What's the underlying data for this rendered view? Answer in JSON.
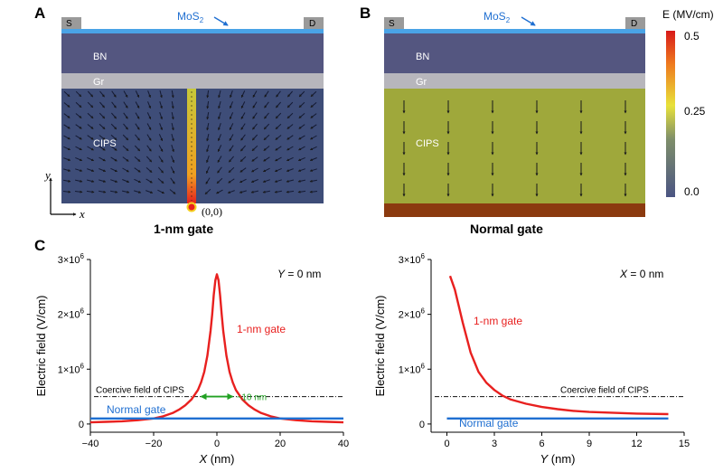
{
  "panel_a": {
    "letter": "A",
    "mos2_label": "MoS",
    "mos2_sub": "2",
    "source_label": "S",
    "drain_label": "D",
    "bn_label": "BN",
    "gr_label": "Gr",
    "cips_label": "CIPS",
    "origin_label": "(0,0)",
    "axis_y": "y",
    "axis_x": "x",
    "caption": "1-nm gate"
  },
  "panel_b": {
    "letter": "B",
    "mos2_label": "MoS",
    "mos2_sub": "2",
    "source_label": "S",
    "drain_label": "D",
    "bn_label": "BN",
    "gr_label": "Gr",
    "cips_label": "CIPS",
    "caption": "Normal gate"
  },
  "colorbar": {
    "title": "E (MV/cm)",
    "ticks": [
      "0.5",
      "0.25",
      "0.0"
    ]
  },
  "panel_c_letter": "C",
  "colors": {
    "mos2": "#4aa3e6",
    "contact": "#9a9a9a",
    "bn": "#545680",
    "gr": "#b7b6bc",
    "cips_field": "#3e4d78",
    "cips_normal": "#9fa83b",
    "gate_normal": "#8b3a0f",
    "curve_1nm": "#e8201f",
    "curve_normal": "#1f6fd1",
    "arrow_green": "#22a123"
  },
  "chart_data": [
    {
      "type": "line",
      "title": "Y = 0 nm",
      "xlabel": "X (nm)",
      "ylabel": "Electric field (V/cm)",
      "xlim": [
        -40,
        40
      ],
      "ylim": [
        -150000.0,
        3000000.0
      ],
      "xticks": [
        "-40",
        "-20",
        "0",
        "20",
        "40"
      ],
      "yticks": [
        {
          "value": 0,
          "label": "0"
        },
        {
          "value": 1000000.0,
          "label": "1×10^6"
        },
        {
          "value": 2000000.0,
          "label": "2×10^6"
        },
        {
          "value": 3000000.0,
          "label": "3×10^6"
        }
      ],
      "series": [
        {
          "name": "1-nm gate",
          "x": [
            -40,
            -35,
            -30,
            -25,
            -20,
            -17,
            -14,
            -12,
            -10,
            -8,
            -6,
            -5,
            -4,
            -3,
            -2,
            -1.5,
            -1,
            -0.5,
            0,
            0.5,
            1,
            1.5,
            2,
            3,
            4,
            5,
            6,
            8,
            10,
            12,
            14,
            17,
            20,
            25,
            30,
            35,
            40
          ],
          "values": [
            30000.0,
            40000.0,
            50000.0,
            70000.0,
            100000.0,
            140000.0,
            200000.0,
            260000.0,
            340000.0,
            450000.0,
            620000.0,
            760000.0,
            950000.0,
            1250000.0,
            1700000.0,
            2000000.0,
            2350000.0,
            2620000.0,
            2730000.0,
            2620000.0,
            2350000.0,
            2000000.0,
            1700000.0,
            1250000.0,
            950000.0,
            760000.0,
            620000.0,
            450000.0,
            340000.0,
            260000.0,
            200000.0,
            140000.0,
            100000.0,
            70000.0,
            50000.0,
            40000.0,
            30000.0
          ]
        },
        {
          "name": "Normal gate",
          "x": [
            -40,
            40
          ],
          "values": [
            100000.0,
            100000.0
          ]
        }
      ],
      "reference_line": {
        "label": "Coercive field of CIPS",
        "value": 500000.0
      },
      "annotation": {
        "label": "~10 nm",
        "from": -5,
        "to": 5,
        "value": 500000.0
      }
    },
    {
      "type": "line",
      "title": "X = 0 nm",
      "xlabel": "Y (nm)",
      "ylabel": "Electric field (V/cm)",
      "xlim": [
        -1,
        15
      ],
      "ylim": [
        -150000.0,
        3000000.0
      ],
      "xticks": [
        "0",
        "3",
        "6",
        "9",
        "12",
        "15"
      ],
      "yticks": [
        {
          "value": 0,
          "label": "0"
        },
        {
          "value": 1000000.0,
          "label": "1×10^6"
        },
        {
          "value": 2000000.0,
          "label": "2×10^6"
        },
        {
          "value": 3000000.0,
          "label": "3×10^6"
        }
      ],
      "series": [
        {
          "name": "1-nm gate",
          "x": [
            0.2,
            0.5,
            1.0,
            1.5,
            2.0,
            2.5,
            3.0,
            3.5,
            4.0,
            5.0,
            6.0,
            7.0,
            8.0,
            9.0,
            10.0,
            12.0,
            14.0
          ],
          "values": [
            2700000.0,
            2450000.0,
            1850000.0,
            1300000.0,
            950000.0,
            750000.0,
            620000.0,
            520000.0,
            450000.0,
            370000.0,
            310000.0,
            270000.0,
            240000.0,
            220000.0,
            210000.0,
            190000.0,
            180000.0
          ]
        },
        {
          "name": "Normal gate",
          "x": [
            0,
            14
          ],
          "values": [
            100000.0,
            100000.0
          ]
        }
      ],
      "reference_line": {
        "label": "Coercive field of CIPS",
        "value": 500000.0
      }
    }
  ]
}
